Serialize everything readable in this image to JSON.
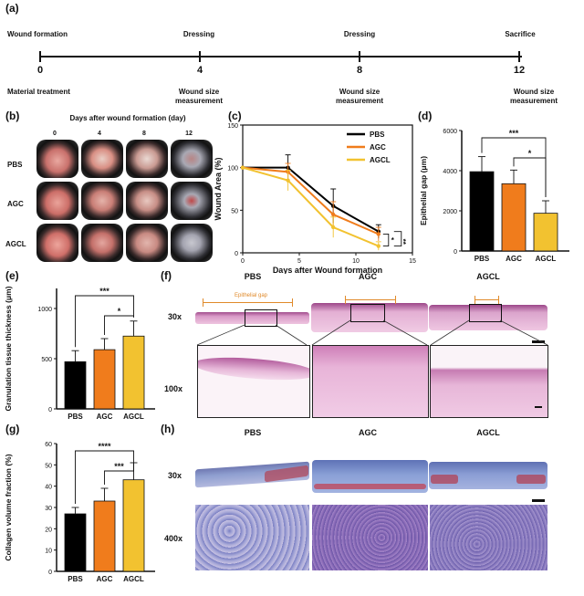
{
  "panel_labels": {
    "a": "(a)",
    "b": "(b)",
    "c": "(c)",
    "d": "(d)",
    "e": "(e)",
    "f": "(f)",
    "g": "(g)",
    "h": "(h)"
  },
  "timeline": {
    "days": [
      "0",
      "4",
      "8",
      "12"
    ],
    "top_labels": [
      "Wound formation",
      "Dressing",
      "Dressing",
      "Sacrifice"
    ],
    "bottom_labels": [
      {
        "line1": "Material treatment",
        "line2": ""
      },
      {
        "line1": "Wound size",
        "line2": "measurement"
      },
      {
        "line1": "Wound size",
        "line2": "measurement"
      },
      {
        "line1": "Wound size",
        "line2": "measurement"
      }
    ]
  },
  "photo_grid": {
    "title": "Days after wound formation (day)",
    "days": [
      "0",
      "4",
      "8",
      "12"
    ],
    "rows": [
      "PBS",
      "AGC",
      "AGCL"
    ]
  },
  "histology_f": {
    "columns": [
      "PBS",
      "AGC",
      "AGCL"
    ],
    "rows": [
      "30x",
      "100x"
    ],
    "annotation": "Epithelial gap"
  },
  "histology_h": {
    "columns": [
      "PBS",
      "AGC",
      "AGCL"
    ],
    "rows": [
      "30x",
      "400x"
    ]
  },
  "colors": {
    "PBS": "#000000",
    "AGC": "#f07c1c",
    "AGCL": "#f2c230",
    "accent": "#e08a2a"
  },
  "chart_data": [
    {
      "id": "c",
      "type": "line",
      "title": "",
      "xlabel": "Days after Wound formation",
      "ylabel": "Wound Area (%)",
      "x": [
        0,
        4,
        8,
        12
      ],
      "xlim": [
        0,
        15
      ],
      "ylim": [
        0,
        150
      ],
      "xticks": [
        "0",
        "5",
        "10",
        "15"
      ],
      "yticks": [
        "0",
        "50",
        "100",
        "150"
      ],
      "series": [
        {
          "name": "PBS",
          "values": [
            100,
            100,
            55,
            25
          ],
          "errors": [
            0,
            15,
            20,
            8
          ]
        },
        {
          "name": "AGC",
          "values": [
            100,
            95,
            45,
            22
          ],
          "errors": [
            0,
            10,
            15,
            8
          ]
        },
        {
          "name": "AGCL",
          "values": [
            100,
            85,
            30,
            8
          ],
          "errors": [
            0,
            12,
            12,
            5
          ]
        }
      ],
      "significance": [
        "*",
        "**"
      ]
    },
    {
      "id": "d",
      "type": "bar",
      "ylabel": "Epithelial gap (μm)",
      "categories": [
        "PBS",
        "AGC",
        "AGCL"
      ],
      "values": [
        3950,
        3350,
        1880
      ],
      "errors": [
        750,
        680,
        620
      ],
      "ylim": [
        0,
        6000
      ],
      "yticks": [
        "0",
        "2000",
        "4000",
        "6000"
      ],
      "significance": [
        "***",
        "*"
      ]
    },
    {
      "id": "e",
      "type": "bar",
      "ylabel": "Granulation tissue thickness (μm)",
      "categories": [
        "PBS",
        "AGC",
        "AGCL"
      ],
      "values": [
        470,
        590,
        725
      ],
      "errors": [
        110,
        110,
        150
      ],
      "ylim": [
        0,
        1200
      ],
      "yticks": [
        "0",
        "500",
        "1000"
      ],
      "significance": [
        "***",
        "*"
      ]
    },
    {
      "id": "g",
      "type": "bar",
      "ylabel": "Collagen volume fraction (%)",
      "categories": [
        "PBS",
        "AGC",
        "AGCL"
      ],
      "values": [
        27,
        33,
        43
      ],
      "errors": [
        3,
        6,
        8
      ],
      "ylim": [
        0,
        60
      ],
      "yticks": [
        "0",
        "10",
        "20",
        "30",
        "40",
        "50",
        "60"
      ],
      "significance": [
        "****",
        "***"
      ]
    }
  ]
}
